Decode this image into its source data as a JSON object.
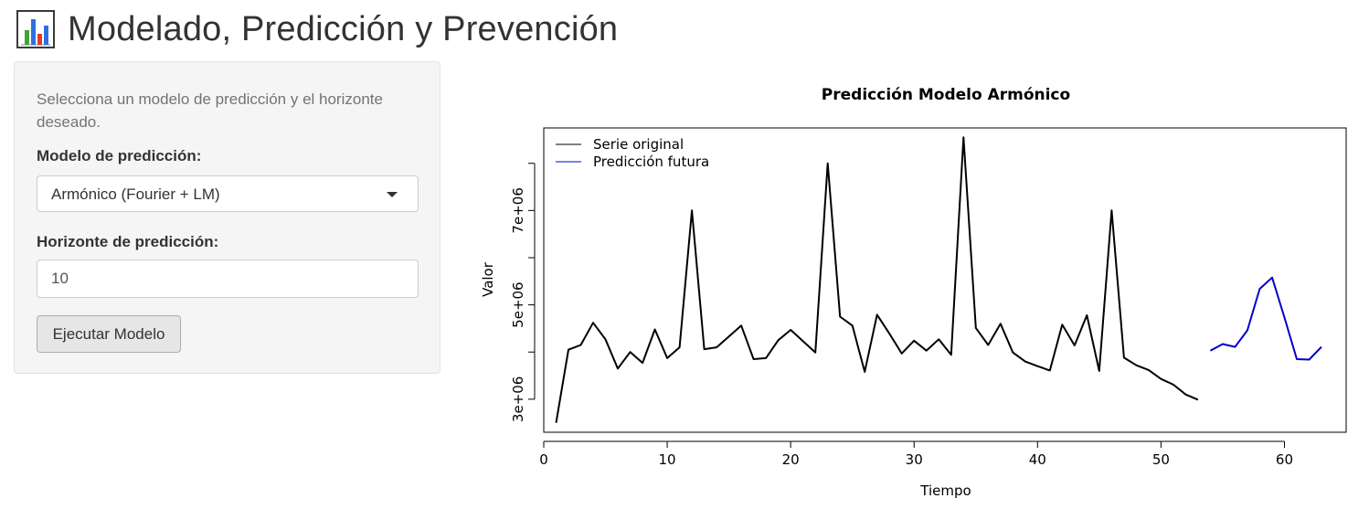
{
  "header": {
    "title": "Modelado, Predicción y Prevención",
    "icon": "bar-chart-icon"
  },
  "sidebar": {
    "help_text": "Selecciona un modelo de predicción y el horizonte deseado.",
    "model_label": "Modelo de predicción:",
    "model_selected": "Armónico (Fourier + LM)",
    "horizon_label": "Horizonte de predicción:",
    "horizon_value": "10",
    "run_button": "Ejecutar Modelo"
  },
  "colors": {
    "original_series": "#000000",
    "forecast_series": "#0000cd"
  },
  "chart_data": {
    "type": "line",
    "title": "Predicción Modelo Armónico",
    "xlabel": "Tiempo",
    "ylabel": "Valor",
    "xlim": [
      0,
      65
    ],
    "ylim": [
      2300000,
      8750000
    ],
    "x_ticks": [
      0,
      10,
      20,
      30,
      40,
      50,
      60
    ],
    "x_tick_labels": [
      "0",
      "10",
      "20",
      "30",
      "40",
      "50",
      "60"
    ],
    "y_ticks": [
      3000000,
      4000000,
      5000000,
      6000000,
      7000000,
      8000000
    ],
    "y_tick_labels": [
      "3e+06",
      "",
      "5e+06",
      "",
      "7e+06",
      ""
    ],
    "legend_position": "top-left",
    "series": [
      {
        "name": "Serie original",
        "color": "#000000",
        "x": [
          1,
          2,
          3,
          4,
          5,
          6,
          7,
          8,
          9,
          10,
          11,
          12,
          13,
          14,
          15,
          16,
          17,
          18,
          19,
          20,
          21,
          22,
          23,
          24,
          25,
          26,
          27,
          28,
          29,
          30,
          31,
          32,
          33,
          34,
          35,
          36,
          37,
          38,
          39,
          40,
          41,
          42,
          43,
          44,
          45,
          46,
          47,
          48,
          49,
          50,
          51,
          52,
          53
        ],
        "values": [
          2500000,
          4050000,
          4150000,
          4620000,
          4270000,
          3650000,
          4000000,
          3770000,
          4480000,
          3870000,
          4100000,
          7000000,
          4060000,
          4100000,
          4330000,
          4560000,
          3850000,
          3870000,
          4250000,
          4470000,
          4230000,
          3990000,
          8000000,
          4750000,
          4560000,
          3580000,
          4790000,
          4390000,
          3970000,
          4240000,
          4030000,
          4270000,
          3940000,
          8550000,
          4510000,
          4150000,
          4600000,
          3990000,
          3800000,
          3700000,
          3610000,
          4580000,
          4140000,
          4780000,
          3600000,
          7000000,
          3880000,
          3720000,
          3620000,
          3430000,
          3310000,
          3100000,
          2990000
        ]
      },
      {
        "name": "Predicción futura",
        "color": "#0000cd",
        "x": [
          54,
          55,
          56,
          57,
          58,
          59,
          60,
          61,
          62,
          63
        ],
        "values": [
          4030000,
          4170000,
          4110000,
          4460000,
          5340000,
          5580000,
          4730000,
          3850000,
          3840000,
          4110000
        ]
      }
    ]
  }
}
